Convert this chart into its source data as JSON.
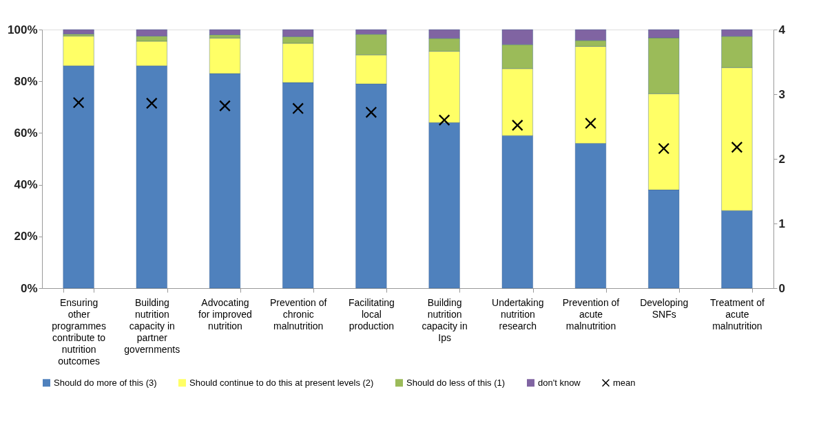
{
  "chart_data": {
    "type": "bar",
    "stacked": true,
    "grid": false,
    "legend": "bottom",
    "categories": [
      "Ensuring other programmes contribute to nutrition outcomes",
      "Building nutrition capacity in partner governments",
      "Advocating for improved nutrition",
      "Prevention of chronic malnutrition",
      "Facilitating local production",
      "Building nutrition capacity in Ips",
      "Undertaking nutrition research",
      "Prevention of acute malnutrition",
      "Developing SNFs",
      "Treatment of acute malnutrition"
    ],
    "ylim": [
      0,
      100
    ],
    "yticks": [
      {
        "value": 0,
        "label": "0%"
      },
      {
        "value": 20,
        "label": "20%"
      },
      {
        "value": 40,
        "label": "40%"
      },
      {
        "value": 60,
        "label": "60%"
      },
      {
        "value": 80,
        "label": "80%"
      },
      {
        "value": 100,
        "label": "100%"
      }
    ],
    "y2lim": [
      0,
      4
    ],
    "y2ticks": [
      0,
      1,
      2,
      3,
      4
    ],
    "series": [
      {
        "name": "Should do more of this (3)",
        "color": "#4f81bd",
        "values": [
          86,
          86,
          83,
          79.5,
          79,
          64,
          59,
          56,
          38,
          30
        ]
      },
      {
        "name": "Should continue to do this at present levels (2)",
        "color": "#ffff66",
        "values": [
          11.5,
          9.5,
          13.7,
          15.2,
          11.2,
          27.6,
          25.9,
          37.5,
          37.2,
          55.3
        ]
      },
      {
        "name": "Should do less of this (1)",
        "color": "#9bbb59",
        "values": [
          0.8,
          2,
          1.3,
          2.6,
          8,
          5,
          9.3,
          2.3,
          21.6,
          12.1
        ]
      },
      {
        "name": "don't know",
        "color": "#8064a2",
        "values": [
          1.7,
          2.5,
          2,
          2.7,
          1.8,
          3.4,
          5.8,
          4.2,
          3.2,
          2.6
        ]
      },
      {
        "name": "mean",
        "type": "scatter",
        "axis": "y2",
        "marker": "cross",
        "color": "#000000",
        "values": [
          2.87,
          2.86,
          2.82,
          2.78,
          2.72,
          2.6,
          2.52,
          2.55,
          2.16,
          2.18
        ]
      }
    ]
  }
}
